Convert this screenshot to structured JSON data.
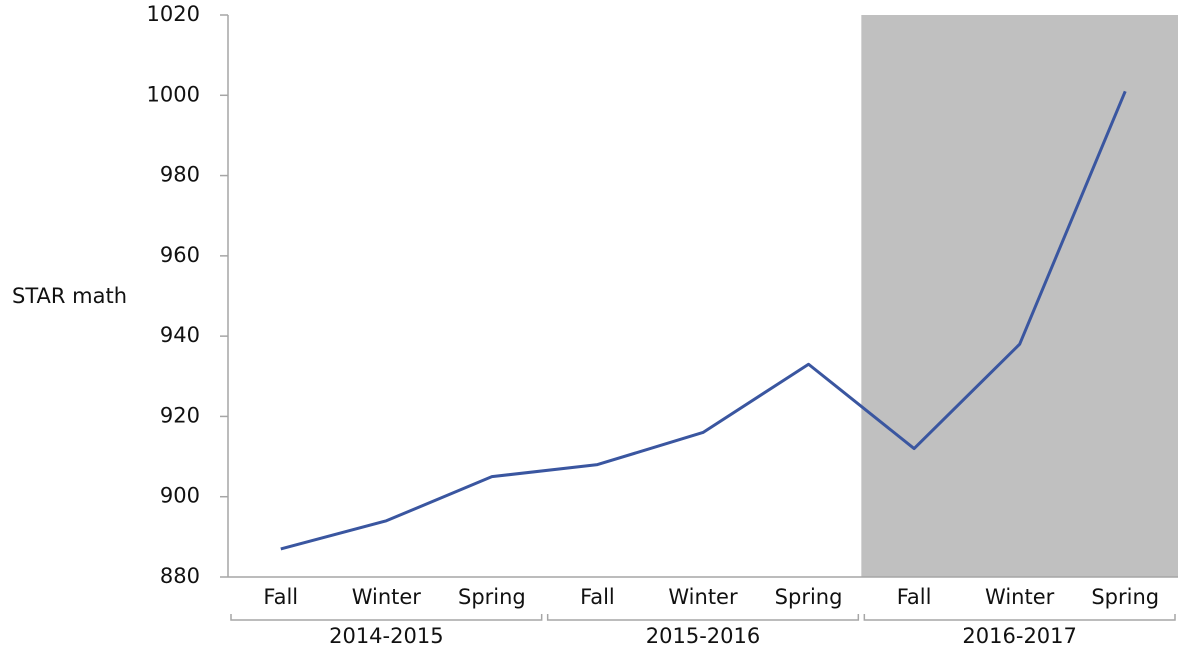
{
  "chart_data": {
    "type": "line",
    "y_label": "STAR math",
    "groups": [
      {
        "name": "2014-2015",
        "categories": [
          "Fall",
          "Winter",
          "Spring"
        ]
      },
      {
        "name": "2015-2016",
        "categories": [
          "Fall",
          "Winter",
          "Spring"
        ]
      },
      {
        "name": "2016-2017",
        "categories": [
          "Fall",
          "Winter",
          "Spring"
        ]
      }
    ],
    "values": [
      887,
      894,
      905,
      908,
      916,
      933,
      912,
      938,
      1001
    ],
    "color": "#3a56a0",
    "highlight": {
      "group": 2,
      "color": "#c0c0c0"
    },
    "ylim": [
      880,
      1020
    ],
    "yticks": [
      880,
      900,
      920,
      940,
      960,
      980,
      1000,
      1020
    ],
    "grid": false
  }
}
